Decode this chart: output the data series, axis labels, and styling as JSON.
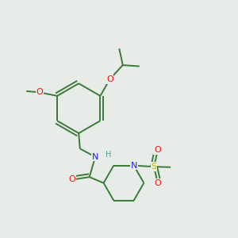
{
  "bg_color": "#e8ece8",
  "bond_color": "#3a7a3a",
  "atom_colors": {
    "O": "#ee1111",
    "N": "#2222dd",
    "S": "#bbbb00",
    "H": "#559999"
  },
  "figsize": [
    3.0,
    3.0
  ],
  "dpi": 100,
  "lw": 1.4
}
